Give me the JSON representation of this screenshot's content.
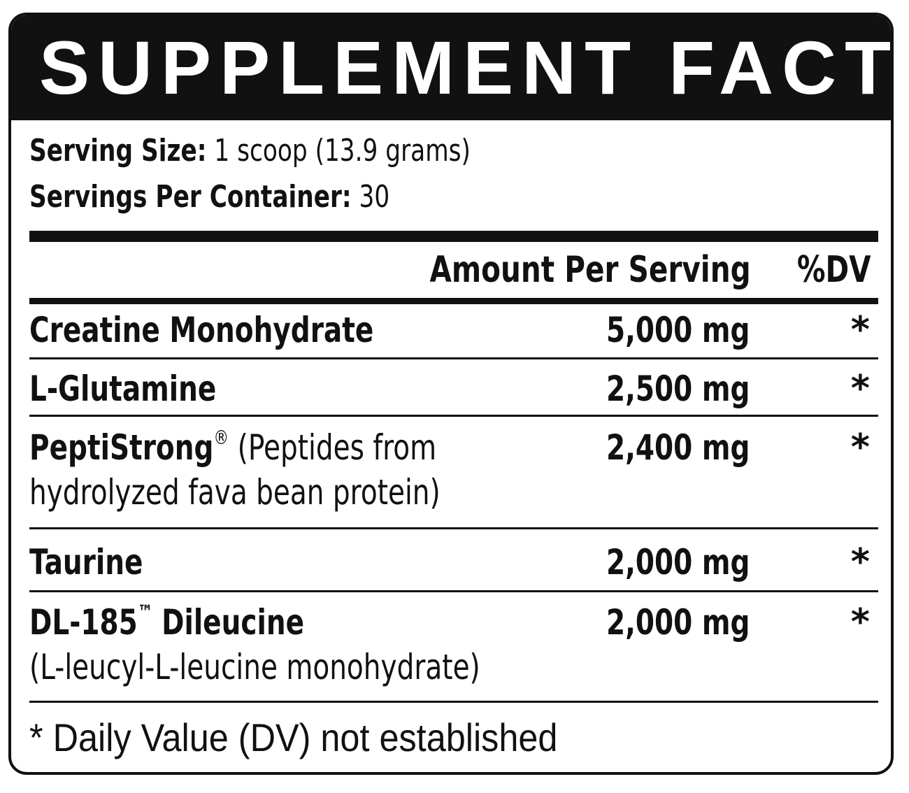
{
  "title": "SUPPLEMENT FACTS",
  "serving": {
    "size_label": "Serving Size:",
    "size_value": "1 scoop (13.9 grams)",
    "per_container_label": "Servings Per Container:",
    "per_container_value": "30"
  },
  "header": {
    "amount": "Amount Per Serving",
    "dv": "%DV"
  },
  "rows": [
    {
      "name": "Creatine Monohydrate",
      "mark": "",
      "desc1": "",
      "desc2": "",
      "amount": "5,000 mg",
      "dv": "*"
    },
    {
      "name": "L-Glutamine",
      "mark": "",
      "desc1": "",
      "desc2": "",
      "amount": "2,500 mg",
      "dv": "*"
    },
    {
      "name": "PeptiStrong",
      "mark": "®",
      "desc1": "(Peptides from",
      "desc2": "hydrolyzed fava bean protein)",
      "amount": "2,400 mg",
      "dv": "*"
    },
    {
      "name": "Taurine",
      "mark": "",
      "desc1": "",
      "desc2": "",
      "amount": "2,000 mg",
      "dv": "*"
    },
    {
      "name": "DL-185",
      "mark": "™",
      "desc1": "Dileucine",
      "desc2": "(L-leucyl-L-leucine monohydrate)",
      "amount": "2,000 mg",
      "dv": "*"
    }
  ],
  "footnote": "* Daily Value (DV) not established",
  "colors": {
    "ink": "#111111",
    "background": "#ffffff"
  }
}
